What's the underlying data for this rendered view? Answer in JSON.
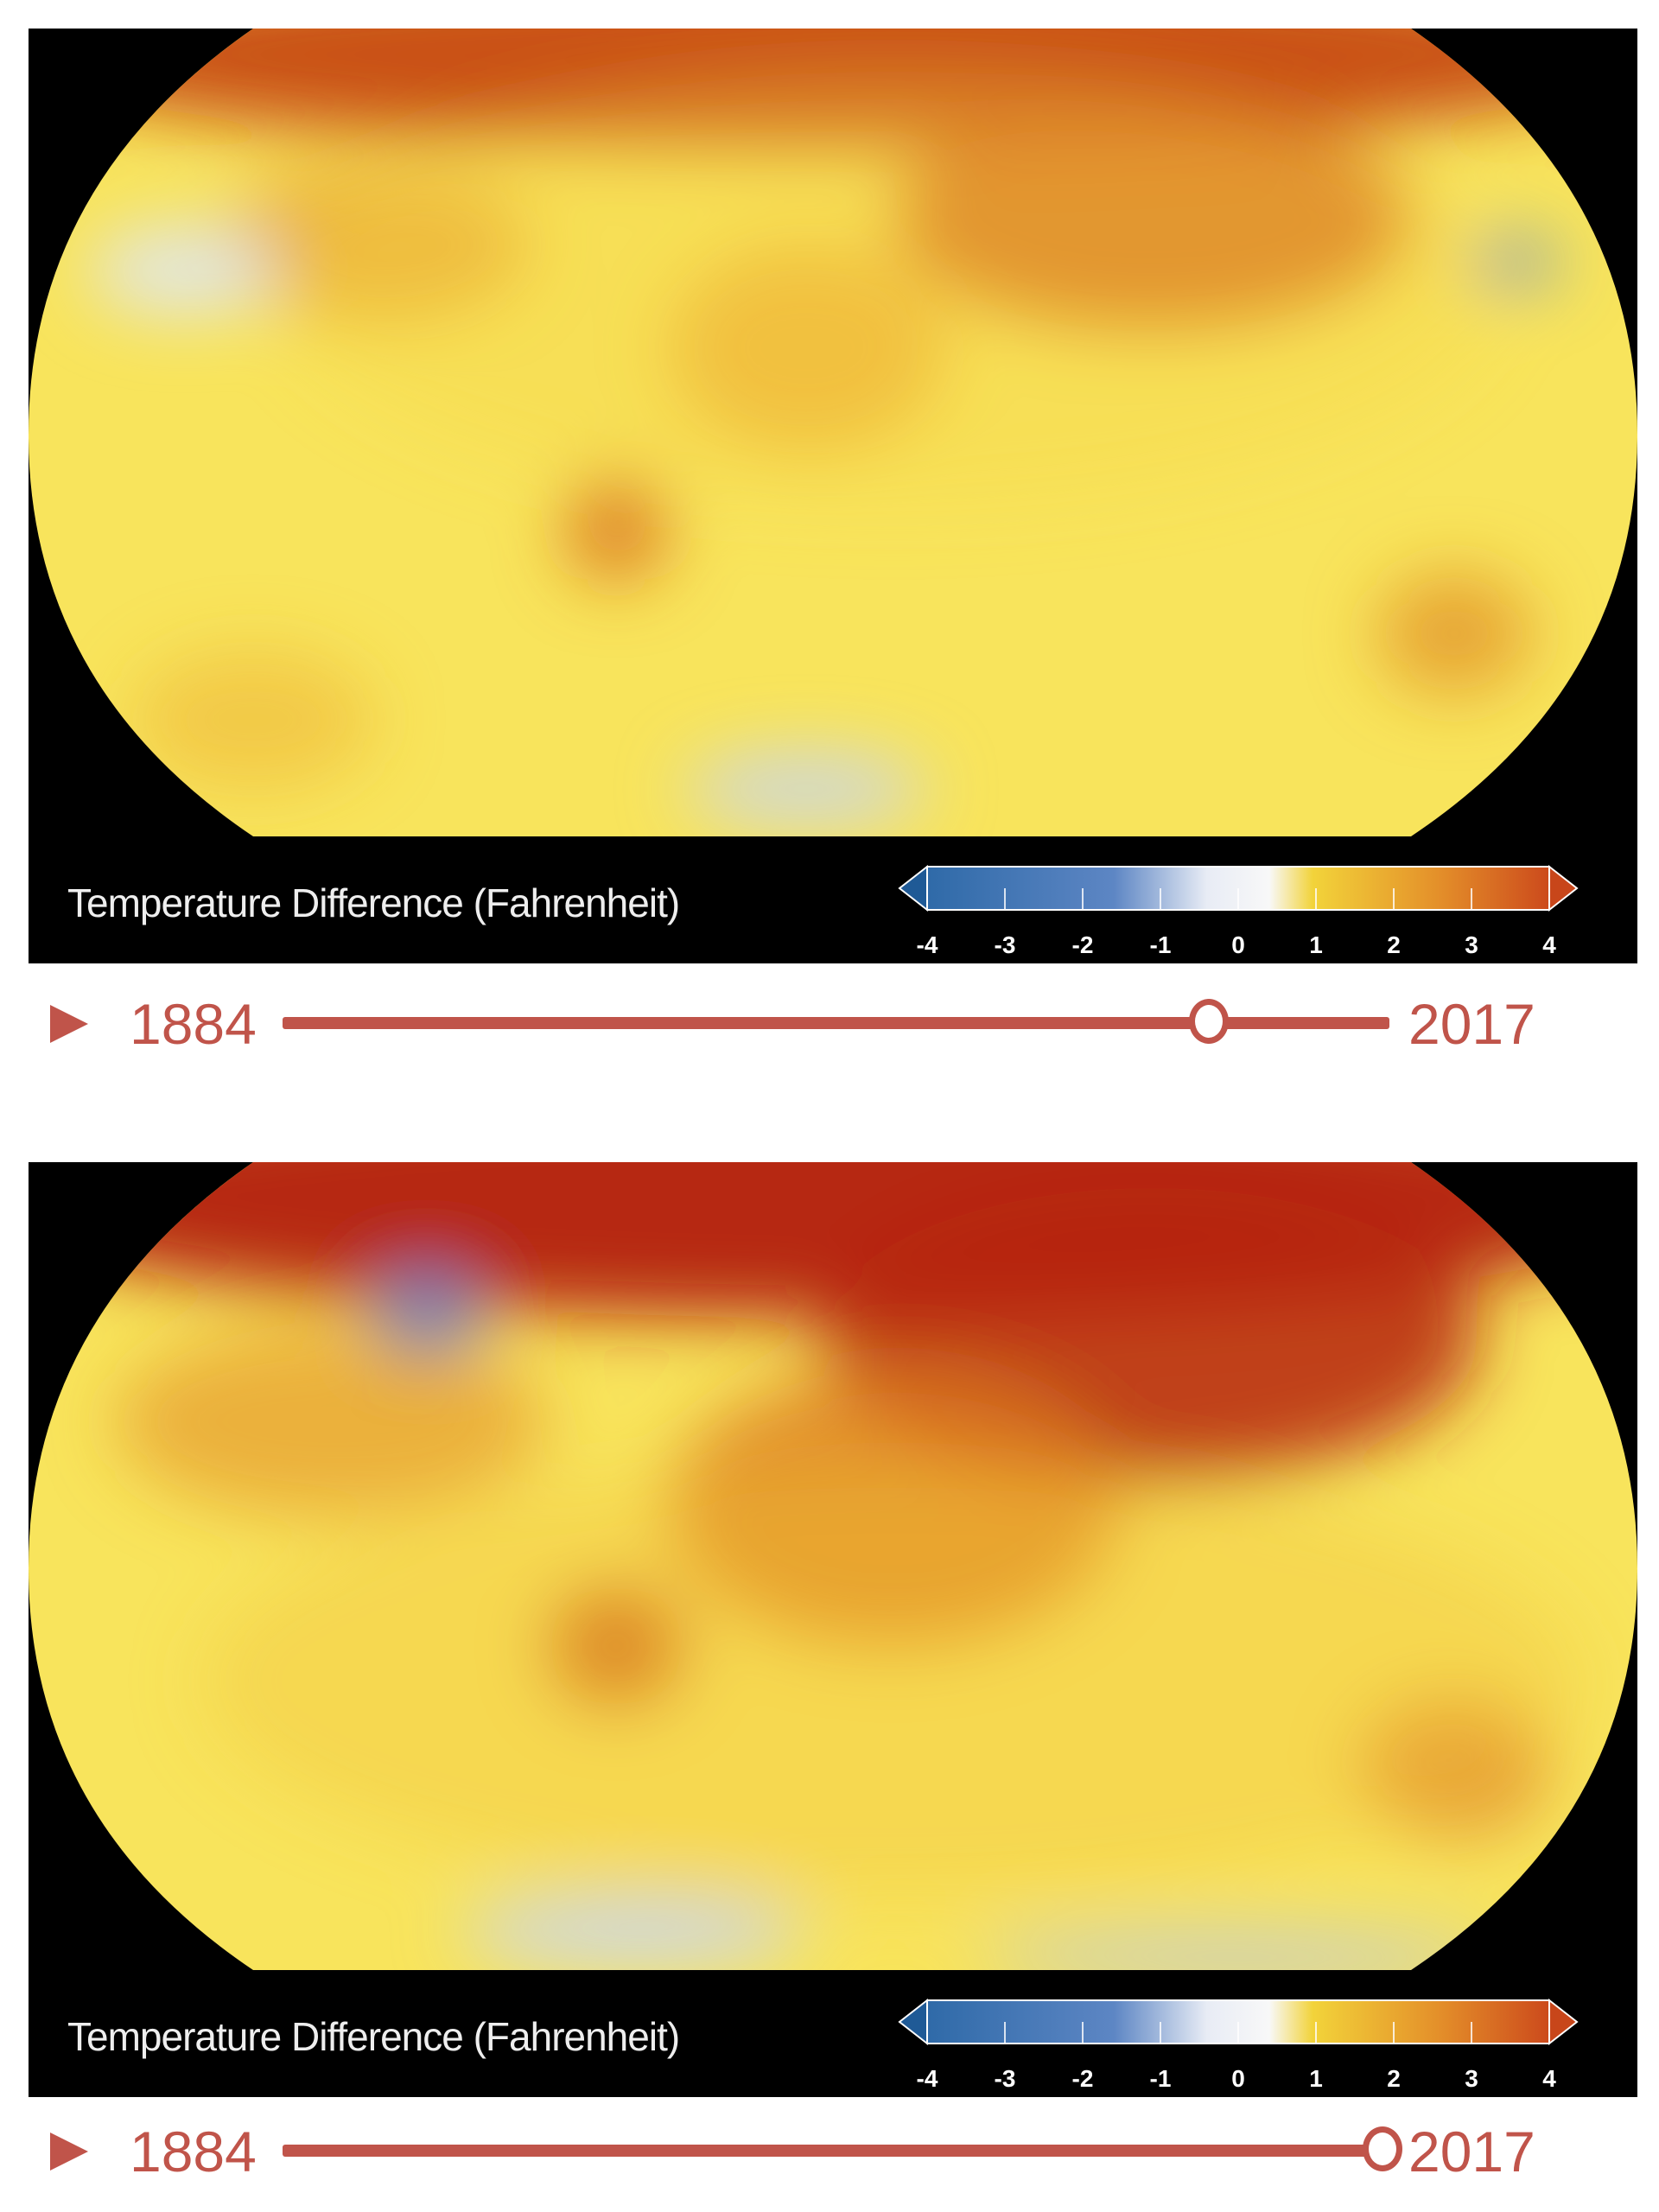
{
  "panels": [
    {
      "legend_title": "Temperature Difference (Fahrenheit)",
      "colorbar_ticks": [
        "-4",
        "-3",
        "-2",
        "-1",
        "0",
        "1",
        "2",
        "3",
        "4"
      ],
      "slider": {
        "start_label": "1884",
        "end_label": "2017",
        "progress": 0.91,
        "play_icon": "play-icon"
      }
    },
    {
      "legend_title": "Temperature Difference (Fahrenheit)",
      "colorbar_ticks": [
        "-4",
        "-3",
        "-2",
        "-1",
        "0",
        "1",
        "2",
        "3",
        "4"
      ],
      "slider": {
        "start_label": "1884",
        "end_label": "2017",
        "progress": 1.0,
        "play_icon": "play-icon"
      }
    }
  ],
  "colors": {
    "accent": "#c0544a",
    "cold": "#2f6aa8",
    "neutral": "#ffffff",
    "warm": "#f2d33a",
    "hot": "#b21d0c"
  }
}
